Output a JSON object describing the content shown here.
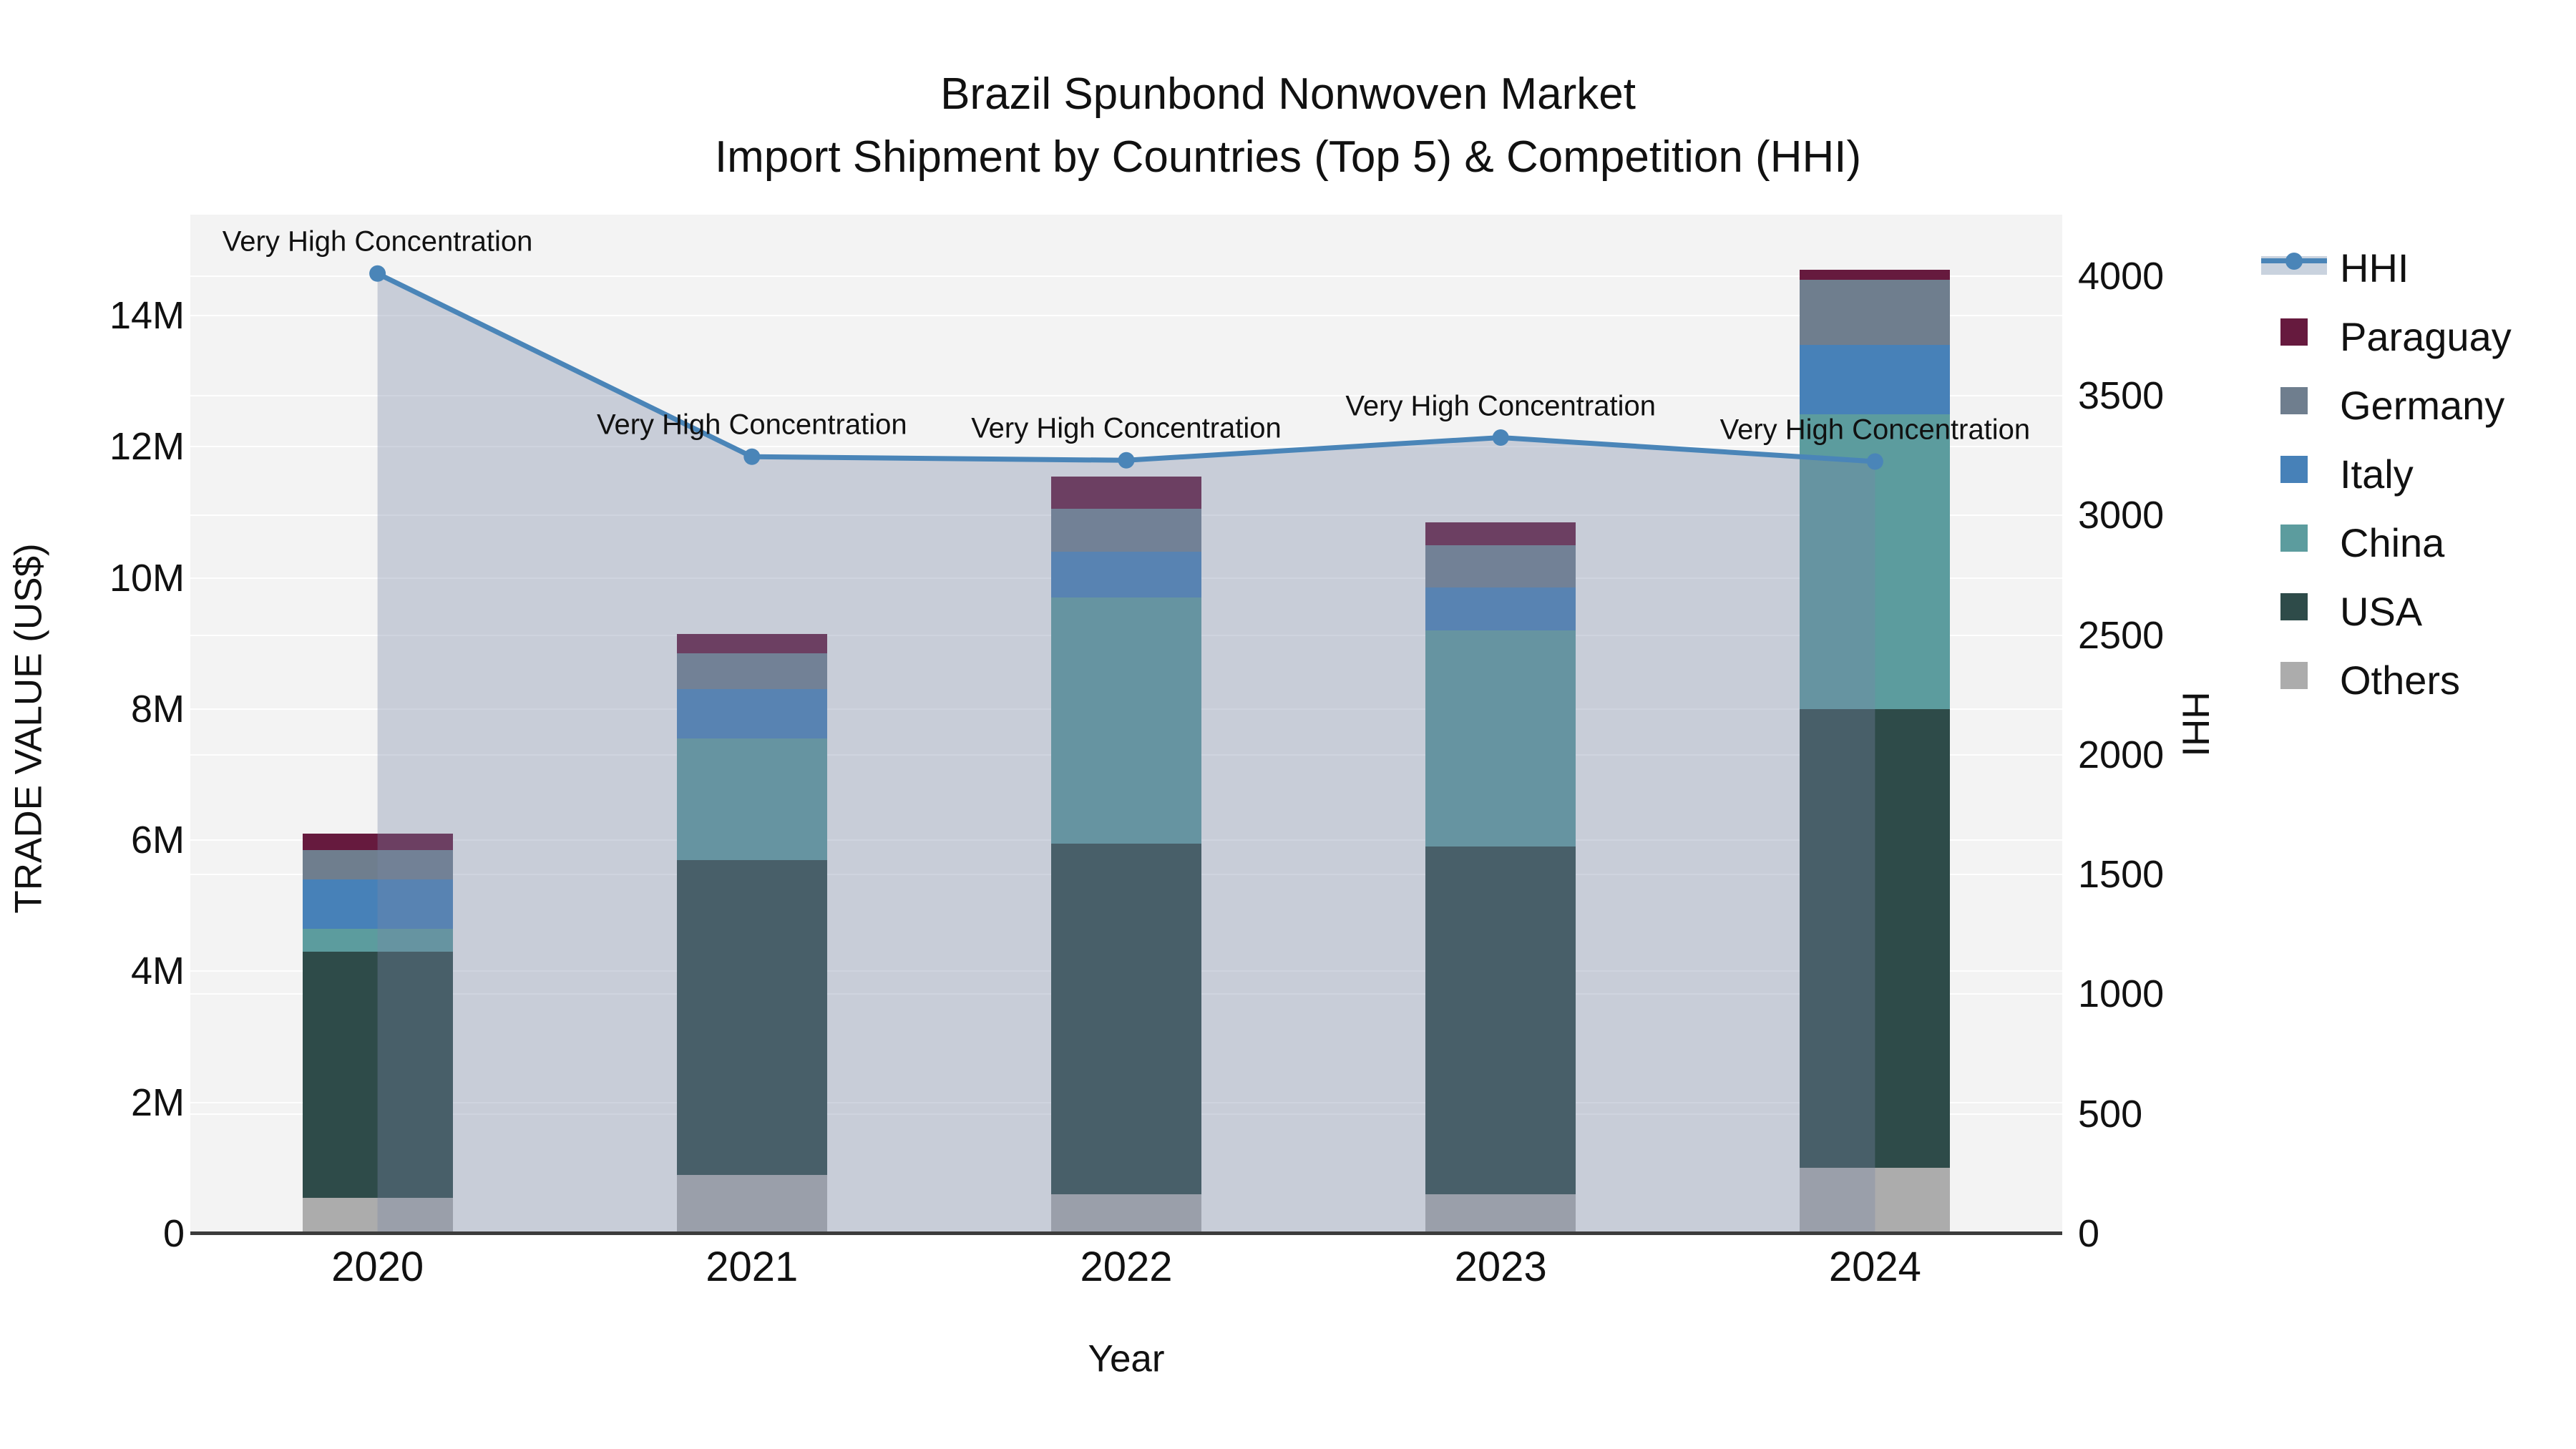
{
  "title": {
    "line1": "Brazil Spunbond Nonwoven Market",
    "line2": "Import Shipment by Countries (Top 5) & Competition (HHI)"
  },
  "chart_data": {
    "type": "bar+line",
    "title": "Brazil Spunbond Nonwoven Market — Import Shipment by Countries (Top 5) & Competition (HHI)",
    "categories": [
      "2020",
      "2021",
      "2022",
      "2023",
      "2024"
    ],
    "bar_units": "Trade value, millions US$",
    "stack_order_bottom_to_top": [
      "Others",
      "USA",
      "China",
      "Italy",
      "Germany",
      "Paraguay"
    ],
    "series": [
      {
        "name": "Others",
        "color": "#ACACAC",
        "values": [
          0.55,
          0.9,
          0.6,
          0.6,
          1.0
        ]
      },
      {
        "name": "USA",
        "color": "#2E4B49",
        "values": [
          3.75,
          4.8,
          5.35,
          5.3,
          7.0
        ]
      },
      {
        "name": "China",
        "color": "#5C9C9E",
        "values": [
          0.35,
          1.85,
          3.75,
          3.3,
          4.5
        ]
      },
      {
        "name": "Italy",
        "color": "#4781B8",
        "values": [
          0.75,
          0.75,
          0.7,
          0.65,
          1.05
        ]
      },
      {
        "name": "Germany",
        "color": "#6F7E8E",
        "values": [
          0.45,
          0.55,
          0.65,
          0.65,
          1.0
        ]
      },
      {
        "name": "Paraguay",
        "color": "#661A3E",
        "values": [
          0.25,
          0.3,
          0.5,
          0.35,
          0.15
        ]
      }
    ],
    "bar_totals_M": [
      6.1,
      9.15,
      11.55,
      10.85,
      14.7
    ],
    "line_series": {
      "name": "HHI",
      "color": "#4A85B8",
      "fill_color": "rgba(121,135,167,0.35)",
      "values": [
        4010,
        3245,
        3230,
        3325,
        3225
      ]
    },
    "annotations": [
      "Very High Concentration",
      "Very High Concentration",
      "Very High Concentration",
      "Very High Concentration",
      "Very High Concentration"
    ],
    "xlabel": "Year",
    "y_left": {
      "title": "TRADE VALUE (US$)",
      "ticks": [
        "0",
        "2M",
        "4M",
        "6M",
        "8M",
        "10M",
        "12M",
        "14M"
      ],
      "tick_values_M": [
        0,
        2,
        4,
        6,
        8,
        10,
        12,
        14
      ],
      "max_M": 15.54
    },
    "y_right": {
      "title": "HHI",
      "ticks": [
        "0",
        "500",
        "1000",
        "1500",
        "2000",
        "2500",
        "3000",
        "3500",
        "4000"
      ],
      "tick_values": [
        0,
        500,
        1000,
        1500,
        2000,
        2500,
        3000,
        3500,
        4000
      ],
      "max": 4256
    },
    "legend_order": [
      "HHI",
      "Paraguay",
      "Germany",
      "Italy",
      "China",
      "USA",
      "Others"
    ],
    "legend_position": "right",
    "grid": true
  },
  "colors": {
    "figure_bg": "#FFFFFF",
    "plot_bg": "#F3F3F3",
    "gridline": "#FFFFFF",
    "axis_line": "#3C3C3C",
    "text": "#111111"
  }
}
